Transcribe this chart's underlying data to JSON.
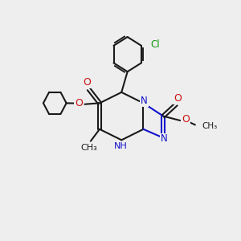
{
  "bg_color": "#eeeeee",
  "bond_color": "#1a1a1a",
  "n_color": "#1111cc",
  "o_color": "#cc1111",
  "cl_color": "#119911",
  "figsize": [
    3.0,
    3.0
  ],
  "dpi": 100,
  "xlim": [
    -1,
    11
  ],
  "ylim": [
    0,
    11
  ]
}
